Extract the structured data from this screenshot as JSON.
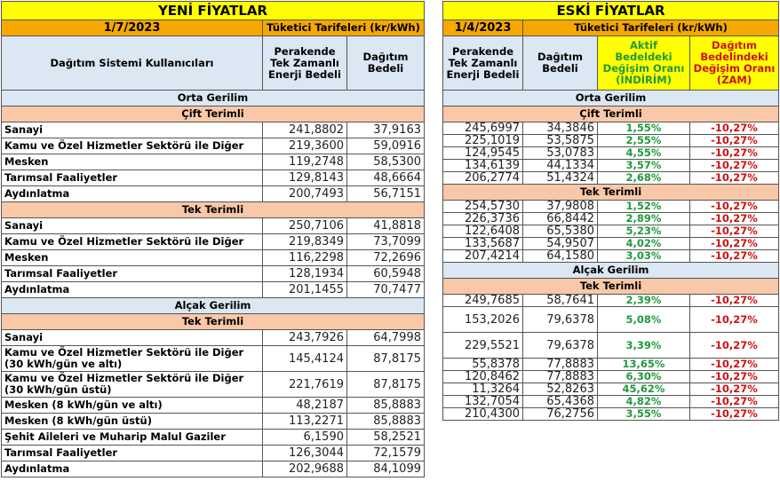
{
  "new": {
    "title": "YENİ FİYATLAR",
    "date": "1/7/2023",
    "tariff_label": "Tüketici Tarifeleri (kr/kWh)",
    "col_users": "Dağıtım Sistemi Kullanıcıları",
    "col_energy": "Perakende Tek Zamanlı Enerji Bedeli",
    "col_dist": "Dağıtım Bedeli"
  },
  "old": {
    "title": "ESKİ FİYATLAR",
    "date": "1/4/2023",
    "tariff_label": "Tüketici Tarifeleri (kr/kWh)",
    "col_energy": "Perakende Tek Zamanlı Enerji Bedeli",
    "col_dist": "Dağıtım Bedeli",
    "col_active_change": "Aktif Bedeldeki Değişim Oranı (İNDİRİM)",
    "col_dist_change": "Dağıtım Bedelindeki Değişim Oranı (ZAM)"
  },
  "colors": {
    "title": "#ffff00",
    "date": "#f5a800",
    "header": "#dbe7f3",
    "group": "#f8c8a8",
    "decrease": "#1f9a3a",
    "increase": "#d01010"
  },
  "rows": [
    {
      "type": "sec",
      "label": "Orta Gerilim"
    },
    {
      "type": "grp",
      "label": "Çift Terimli"
    },
    {
      "type": "data",
      "label": "Sanayi",
      "new_energy": "241,8802",
      "new_dist": "37,9163",
      "old_energy": "245,6997",
      "old_dist": "34,3846",
      "active_change": "1,55%",
      "dist_change": "-10,27%"
    },
    {
      "type": "data",
      "label": "Kamu ve Özel Hizmetler Sektörü ile Diğer",
      "new_energy": "219,3600",
      "new_dist": "59,0916",
      "old_energy": "225,1019",
      "old_dist": "53,5875",
      "active_change": "2,55%",
      "dist_change": "-10,27%"
    },
    {
      "type": "data",
      "label": "Mesken",
      "new_energy": "119,2748",
      "new_dist": "58,5300",
      "old_energy": "124,9545",
      "old_dist": "53,0783",
      "active_change": "4,55%",
      "dist_change": "-10,27%"
    },
    {
      "type": "data",
      "label": "Tarımsal Faaliyetler",
      "new_energy": "129,8143",
      "new_dist": "48,6664",
      "old_energy": "134,6139",
      "old_dist": "44,1334",
      "active_change": "3,57%",
      "dist_change": "-10,27%"
    },
    {
      "type": "data",
      "label": "Aydınlatma",
      "new_energy": "200,7493",
      "new_dist": "56,7151",
      "old_energy": "206,2774",
      "old_dist": "51,4324",
      "active_change": "2,68%",
      "dist_change": "-10,27%"
    },
    {
      "type": "grp",
      "label": "Tek Terimli"
    },
    {
      "type": "data",
      "label": "Sanayi",
      "new_energy": "250,7106",
      "new_dist": "41,8818",
      "old_energy": "254,5730",
      "old_dist": "37,9808",
      "active_change": "1,52%",
      "dist_change": "-10,27%"
    },
    {
      "type": "data",
      "label": "Kamu ve Özel Hizmetler Sektörü ile Diğer",
      "new_energy": "219,8349",
      "new_dist": "73,7099",
      "old_energy": "226,3736",
      "old_dist": "66,8442",
      "active_change": "2,89%",
      "dist_change": "-10,27%"
    },
    {
      "type": "data",
      "label": "Mesken",
      "new_energy": "116,2298",
      "new_dist": "72,2696",
      "old_energy": "122,6408",
      "old_dist": "65,5380",
      "active_change": "5,23%",
      "dist_change": "-10,27%"
    },
    {
      "type": "data",
      "label": "Tarımsal Faaliyetler",
      "new_energy": "128,1934",
      "new_dist": "60,5948",
      "old_energy": "133,5687",
      "old_dist": "54,9507",
      "active_change": "4,02%",
      "dist_change": "-10,27%"
    },
    {
      "type": "data",
      "label": "Aydınlatma",
      "new_energy": "201,1455",
      "new_dist": "70,7477",
      "old_energy": "207,4214",
      "old_dist": "64,1580",
      "active_change": "3,03%",
      "dist_change": "-10,27%"
    },
    {
      "type": "sec",
      "label": "Alçak Gerilim"
    },
    {
      "type": "grp",
      "label": "Tek Terimli"
    },
    {
      "type": "data",
      "label": "Sanayi",
      "new_energy": "243,7926",
      "new_dist": "64,7998",
      "old_energy": "249,7685",
      "old_dist": "58,7641",
      "active_change": "2,39%",
      "dist_change": "-10,27%"
    },
    {
      "type": "data",
      "tall": true,
      "label": "Kamu ve Özel Hizmetler Sektörü ile Diğer (30 kWh/gün ve altı)",
      "new_energy": "145,4124",
      "new_dist": "87,8175",
      "old_energy": "153,2026",
      "old_dist": "79,6378",
      "active_change": "5,08%",
      "dist_change": "-10,27%"
    },
    {
      "type": "data",
      "tall": true,
      "label": "Kamu ve Özel Hizmetler Sektörü ile Diğer (30 kWh/gün üstü)",
      "new_energy": "221,7619",
      "new_dist": "87,8175",
      "old_energy": "229,5521",
      "old_dist": "79,6378",
      "active_change": "3,39%",
      "dist_change": "-10,27%"
    },
    {
      "type": "data",
      "label": "Mesken (8 kWh/gün ve altı)",
      "new_energy": "48,2187",
      "new_dist": "85,8883",
      "old_energy": "55,8378",
      "old_dist": "77,8883",
      "active_change": "13,65%",
      "dist_change": "-10,27%"
    },
    {
      "type": "data",
      "label": "Mesken (8 kWh/gün üstü)",
      "new_energy": "113,2271",
      "new_dist": "85,8883",
      "old_energy": "120,8462",
      "old_dist": "77,8883",
      "active_change": "6,30%",
      "dist_change": "-10,27%"
    },
    {
      "type": "data",
      "label": "Şehit Aileleri ve Muharip Malul Gaziler",
      "new_energy": "6,1590",
      "new_dist": "58,2521",
      "old_energy": "11,3264",
      "old_dist": "52,8263",
      "active_change": "45,62%",
      "dist_change": "-10,27%"
    },
    {
      "type": "data",
      "label": "Tarımsal Faaliyetler",
      "new_energy": "126,3044",
      "new_dist": "72,1579",
      "old_energy": "132,7054",
      "old_dist": "65,4368",
      "active_change": "4,82%",
      "dist_change": "-10,27%"
    },
    {
      "type": "data",
      "label": "Aydınlatma",
      "new_energy": "202,9688",
      "new_dist": "84,1099",
      "old_energy": "210,4300",
      "old_dist": "76,2756",
      "active_change": "3,55%",
      "dist_change": "-10,27%"
    }
  ]
}
